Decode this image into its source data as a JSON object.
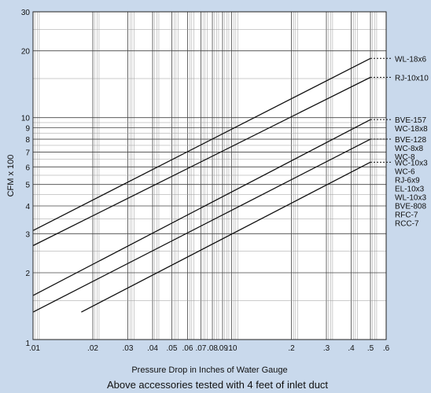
{
  "chart_data": {
    "type": "line",
    "title": "",
    "xlabel": "Pressure Drop in Inches of Water Gauge",
    "ylabel": "CFM x 100",
    "caption": "Above accessories tested with 4 feet of inlet duct",
    "x_scale": "log",
    "y_scale": "log",
    "xlim": [
      0.01,
      0.6
    ],
    "ylim": [
      1,
      30
    ],
    "grid": true,
    "x_ticks": [
      {
        "value": 0.01,
        "label": ".01"
      },
      {
        "value": 0.02,
        "label": ".02"
      },
      {
        "value": 0.03,
        "label": ".03"
      },
      {
        "value": 0.04,
        "label": ".04"
      },
      {
        "value": 0.05,
        "label": ".05"
      },
      {
        "value": 0.06,
        "label": ".06"
      },
      {
        "value": 0.07,
        "label": ".07"
      },
      {
        "value": 0.08,
        "label": ".08"
      },
      {
        "value": 0.09,
        "label": ".09"
      },
      {
        "value": 0.1,
        "label": ".10"
      },
      {
        "value": 0.2,
        "label": ".2"
      },
      {
        "value": 0.3,
        "label": ".3"
      },
      {
        "value": 0.4,
        "label": ".4"
      },
      {
        "value": 0.5,
        "label": ".5"
      },
      {
        "value": 0.6,
        "label": ".6"
      }
    ],
    "y_ticks": [
      {
        "value": 1,
        "label": "1"
      },
      {
        "value": 2,
        "label": "2"
      },
      {
        "value": 3,
        "label": "3"
      },
      {
        "value": 4,
        "label": "4"
      },
      {
        "value": 5,
        "label": "5"
      },
      {
        "value": 6,
        "label": "6"
      },
      {
        "value": 7,
        "label": "7"
      },
      {
        "value": 8,
        "label": "8"
      },
      {
        "value": 9,
        "label": "9"
      },
      {
        "value": 10,
        "label": "10"
      },
      {
        "value": 20,
        "label": "20"
      },
      {
        "value": 30,
        "label": "30"
      }
    ],
    "series": [
      {
        "labels": [
          "WL-18x6"
        ],
        "x": [
          0.01,
          0.5
        ],
        "y": [
          3.1,
          18.5
        ]
      },
      {
        "labels": [
          "RJ-10x10"
        ],
        "x": [
          0.01,
          0.5
        ],
        "y": [
          2.65,
          15.2
        ]
      },
      {
        "labels": [
          "BVE-157",
          "WC-18x8"
        ],
        "x": [
          0.01,
          0.5
        ],
        "y": [
          1.58,
          9.8
        ]
      },
      {
        "labels": [
          "BVE-128",
          "WC-8x8",
          "WC-8"
        ],
        "x": [
          0.01,
          0.5
        ],
        "y": [
          1.33,
          8.0
        ]
      },
      {
        "labels": [
          "WC-10x3",
          "WC-6",
          "RJ-6x9",
          "EL-10x3",
          "WL-10x3",
          "BVE-808",
          "RFC-7",
          "RCC-7"
        ],
        "x": [
          0.0175,
          0.5
        ],
        "y": [
          1.33,
          6.3
        ]
      }
    ]
  }
}
